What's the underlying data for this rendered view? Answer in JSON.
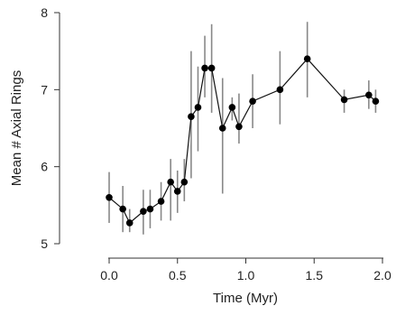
{
  "chart_data": {
    "type": "line",
    "title": "",
    "xlabel": "Time (Myr)",
    "ylabel": "Mean # Axial Rings",
    "xlim": [
      0.0,
      2.0
    ],
    "ylim": [
      5,
      8
    ],
    "x_ticks": [
      0.0,
      0.5,
      1.0,
      1.5,
      2.0
    ],
    "x_tick_labels": [
      "0.0",
      "0.5",
      "1.0",
      "1.5",
      "2.0"
    ],
    "y_ticks": [
      5,
      6,
      7,
      8
    ],
    "y_tick_labels": [
      "5",
      "6",
      "7",
      "8"
    ],
    "grid": false,
    "legend": "none",
    "colors": {
      "line": "#111111",
      "point": "#000000",
      "error_bar": "#888888",
      "axis": "#333333"
    },
    "series": [
      {
        "points": [
          {
            "x": 0.0,
            "y": 5.6,
            "lo": 5.27,
            "hi": 5.93
          },
          {
            "x": 0.1,
            "y": 5.45,
            "lo": 5.15,
            "hi": 5.75
          },
          {
            "x": 0.15,
            "y": 5.27,
            "lo": 5.15,
            "hi": 5.45
          },
          {
            "x": 0.25,
            "y": 5.42,
            "lo": 5.12,
            "hi": 5.7
          },
          {
            "x": 0.3,
            "y": 5.45,
            "lo": 5.2,
            "hi": 5.7
          },
          {
            "x": 0.38,
            "y": 5.55,
            "lo": 5.3,
            "hi": 5.8
          },
          {
            "x": 0.45,
            "y": 5.8,
            "lo": 5.3,
            "hi": 6.1
          },
          {
            "x": 0.5,
            "y": 5.68,
            "lo": 5.4,
            "hi": 5.95
          },
          {
            "x": 0.55,
            "y": 5.8,
            "lo": 5.55,
            "hi": 6.1
          },
          {
            "x": 0.6,
            "y": 6.65,
            "lo": 5.85,
            "hi": 7.5
          },
          {
            "x": 0.65,
            "y": 6.77,
            "lo": 6.2,
            "hi": 7.3
          },
          {
            "x": 0.7,
            "y": 7.28,
            "lo": 6.9,
            "hi": 7.7
          },
          {
            "x": 0.75,
            "y": 7.28,
            "lo": 6.7,
            "hi": 7.85
          },
          {
            "x": 0.83,
            "y": 6.5,
            "lo": 5.65,
            "hi": 7.15
          },
          {
            "x": 0.9,
            "y": 6.77,
            "lo": 6.6,
            "hi": 6.9
          },
          {
            "x": 0.95,
            "y": 6.52,
            "lo": 6.3,
            "hi": 6.95
          },
          {
            "x": 1.05,
            "y": 6.85,
            "lo": 6.5,
            "hi": 7.2
          },
          {
            "x": 1.25,
            "y": 7.0,
            "lo": 6.55,
            "hi": 7.5
          },
          {
            "x": 1.45,
            "y": 7.4,
            "lo": 6.9,
            "hi": 7.88
          },
          {
            "x": 1.72,
            "y": 6.87,
            "lo": 6.7,
            "hi": 7.0
          },
          {
            "x": 1.9,
            "y": 6.93,
            "lo": 6.75,
            "hi": 7.12
          },
          {
            "x": 1.95,
            "y": 6.85,
            "lo": 6.7,
            "hi": 7.0
          }
        ]
      }
    ]
  }
}
